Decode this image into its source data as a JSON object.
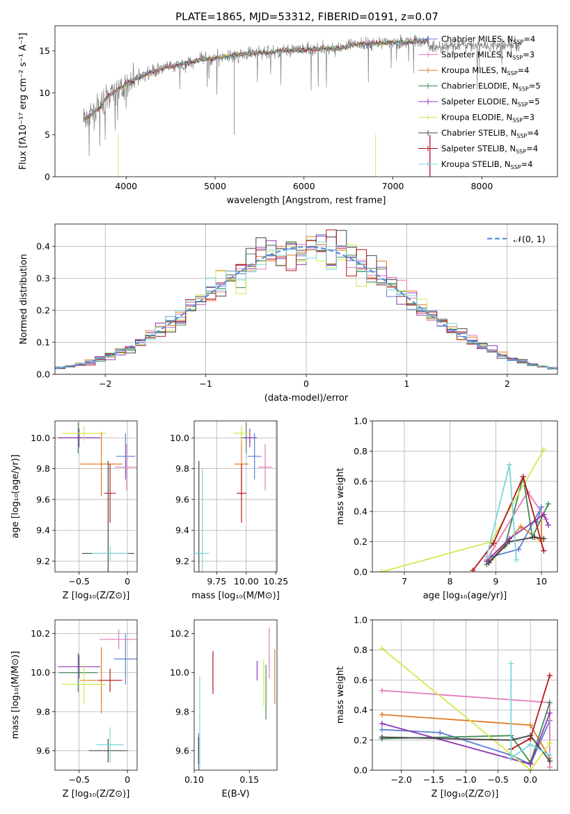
{
  "figure_title": "PLATE=1865, MJD=53312, FIBERID=0191, z=0.07",
  "models": [
    {
      "name": "Chabrier MILES",
      "nssp": "4",
      "color": "#5b7fd1"
    },
    {
      "name": "Salpeter MILES",
      "nssp": "3",
      "color": "#e37ab9"
    },
    {
      "name": "Kroupa MILES",
      "nssp": "4",
      "color": "#e07b27"
    },
    {
      "name": "Chabrier ELODIE",
      "nssp": "5",
      "color": "#3f8a55"
    },
    {
      "name": "Salpeter ELODIE",
      "nssp": "5",
      "color": "#8e34b3"
    },
    {
      "name": "Kroupa ELODIE",
      "nssp": "3",
      "color": "#d2e84e"
    },
    {
      "name": "Chabrier STELIB",
      "nssp": "4",
      "color": "#444444"
    },
    {
      "name": "Salpeter STELIB",
      "nssp": "4",
      "color": "#b2191d"
    },
    {
      "name": "Kroupa STELIB",
      "nssp": "4",
      "color": "#79d6d8"
    }
  ],
  "chart_data": [
    {
      "id": "spectrum",
      "type": "line",
      "xlabel": "wavelength [Angstrom, rest frame]",
      "ylabel": "Flux [fλ10⁻¹⁷ erg cm⁻² s⁻¹ A⁻¹]",
      "xlim": [
        3200,
        8850
      ],
      "ylim": [
        0,
        18
      ],
      "xticks": [
        4000,
        5000,
        6000,
        7000,
        8000
      ],
      "yticks": [
        0,
        5,
        10,
        15
      ],
      "grid": false,
      "legend_position": "right",
      "data_color": "#7f7f7f",
      "continuum": {
        "x": [
          3520,
          3600,
          3700,
          3800,
          3900,
          4000,
          4200,
          4400,
          4600,
          4800,
          5000,
          5200,
          5400,
          5600,
          5800,
          6000,
          6200,
          6400,
          6600,
          6800,
          7000,
          7200,
          7400
        ],
        "y": [
          6.8,
          7.3,
          8.3,
          9.6,
          10.3,
          11.1,
          12.1,
          12.9,
          13.3,
          13.9,
          14.1,
          14.5,
          14.7,
          14.8,
          15.1,
          15.1,
          15.3,
          15.3,
          15.8,
          15.9,
          16.0,
          16.1,
          16.2
        ]
      },
      "data_range": [
        3520,
        8450
      ],
      "model_range": [
        3520,
        7400
      ]
    },
    {
      "id": "residuals",
      "type": "step",
      "xlabel": "(data-model)/error",
      "ylabel": "Normed distribution",
      "xlim": [
        -2.5,
        2.5
      ],
      "ylim": [
        0,
        0.47
      ],
      "xticks": [
        -2,
        -1,
        0,
        1,
        2
      ],
      "yticks": [
        0.0,
        0.1,
        0.2,
        0.3,
        0.4
      ],
      "grid": true,
      "legend_position": "top-right",
      "reference_label": "𝒩(0, 1)",
      "reference_color": "#5b8fd6",
      "bin_width": 0.1
    },
    {
      "id": "age_vs_Z",
      "type": "errorbar",
      "xlabel": "Z [log₁₀(Z/Z⊙)]",
      "ylabel": "age  [log₁₀(age/yr)]",
      "xlim": [
        -0.75,
        0.1
      ],
      "ylim": [
        9.13,
        10.11
      ],
      "xticks": [
        -0.5,
        0.0
      ],
      "yticks": [
        9.2,
        9.4,
        9.6,
        9.8,
        10.0
      ],
      "grid": true,
      "points": [
        {
          "x": -0.02,
          "y": 9.88,
          "xerr": 0.1,
          "yerr": 0.15
        },
        {
          "x": -0.01,
          "y": 9.81,
          "xerr": 0.12,
          "yerr": 0.15
        },
        {
          "x": -0.27,
          "y": 9.83,
          "xerr": 0.22,
          "yerr": 0.21
        },
        {
          "x": -0.51,
          "y": 10.0,
          "xerr": 0.2,
          "yerr": 0.1
        },
        {
          "x": -0.5,
          "y": 10.0,
          "xerr": 0.22,
          "yerr": 0.06
        },
        {
          "x": -0.45,
          "y": 10.03,
          "xerr": 0.23,
          "yerr": 0.05
        },
        {
          "x": -0.2,
          "y": 9.25,
          "xerr": 0.27,
          "yerr": 0.6
        },
        {
          "x": -0.18,
          "y": 9.64,
          "xerr": 0.06,
          "yerr": 0.19
        },
        {
          "x": -0.18,
          "y": 9.25,
          "xerr": 0.19,
          "yerr": 0.05
        }
      ]
    },
    {
      "id": "age_vs_mass",
      "type": "errorbar",
      "xlabel": "mass [log₁₀(M/M⊙)]",
      "ylabel": "",
      "xlim": [
        9.56,
        10.26
      ],
      "ylim": [
        9.13,
        10.11
      ],
      "xticks": [
        9.75,
        10.0,
        10.25
      ],
      "xticklabels": [
        "9.75",
        "10.00",
        "10.25"
      ],
      "yticks": [
        9.2,
        9.4,
        9.6,
        9.8,
        10.0
      ],
      "grid": true,
      "points": [
        {
          "x": 10.07,
          "y": 9.88,
          "xerr": 0.06,
          "yerr": 0.15
        },
        {
          "x": 10.16,
          "y": 9.81,
          "xerr": 0.06,
          "yerr": 0.15
        },
        {
          "x": 9.96,
          "y": 9.83,
          "xerr": 0.06,
          "yerr": 0.21
        },
        {
          "x": 10.0,
          "y": 10.0,
          "xerr": 0.05,
          "yerr": 0.1
        },
        {
          "x": 10.03,
          "y": 10.0,
          "xerr": 0.06,
          "yerr": 0.06
        },
        {
          "x": 9.96,
          "y": 10.03,
          "xerr": 0.07,
          "yerr": 0.05
        },
        {
          "x": 9.6,
          "y": 9.25,
          "xerr": 0.03,
          "yerr": 0.6
        },
        {
          "x": 9.96,
          "y": 9.64,
          "xerr": 0.04,
          "yerr": 0.19
        },
        {
          "x": 9.63,
          "y": 9.25,
          "xerr": 0.06,
          "yerr": 0.55
        }
      ]
    },
    {
      "id": "weight_vs_age",
      "type": "line",
      "xlabel": "age  [log₁₀(age/yr)]",
      "ylabel": "mass weight",
      "xlim": [
        6.3,
        10.35
      ],
      "ylim": [
        0,
        1.0
      ],
      "xticks": [
        7,
        8,
        9,
        10
      ],
      "yticks": [
        0.0,
        0.2,
        0.4,
        0.6,
        0.8,
        1.0
      ],
      "grid": true,
      "series": [
        {
          "x": [
            8.9,
            9.5,
            10.0,
            9.9
          ],
          "y": [
            0.1,
            0.15,
            0.43,
            0.33
          ]
        },
        {
          "x": [
            8.8,
            9.7,
            10.1
          ],
          "y": [
            0.08,
            0.53,
            0.35
          ]
        },
        {
          "x": [
            8.9,
            9.55,
            10.0,
            10.0
          ],
          "y": [
            0.08,
            0.3,
            0.2,
            0.37
          ]
        },
        {
          "x": [
            8.8,
            9.2,
            9.6,
            9.8,
            10.15
          ],
          "y": [
            0.05,
            0.17,
            0.63,
            0.23,
            0.45
          ]
        },
        {
          "x": [
            8.8,
            9.3,
            10.05,
            10.15
          ],
          "y": [
            0.07,
            0.22,
            0.38,
            0.31
          ]
        },
        {
          "x": [
            6.5,
            8.9,
            10.05
          ],
          "y": [
            0.0,
            0.2,
            0.81
          ]
        },
        {
          "x": [
            8.85,
            9.3,
            9.85,
            10.05
          ],
          "y": [
            0.06,
            0.2,
            0.23,
            0.22
          ]
        },
        {
          "x": [
            8.5,
            8.95,
            9.6,
            10.05
          ],
          "y": [
            0.01,
            0.19,
            0.63,
            0.14
          ]
        },
        {
          "x": [
            8.8,
            9.3,
            9.45
          ],
          "y": [
            0.1,
            0.71,
            0.08
          ]
        }
      ]
    },
    {
      "id": "mass_vs_Z",
      "type": "errorbar",
      "xlabel": "Z [log₁₀(Z/Z⊙)]",
      "ylabel": "mass [log₁₀(M/M⊙)]",
      "xlim": [
        -0.75,
        0.1
      ],
      "ylim": [
        9.5,
        10.27
      ],
      "xticks": [
        -0.5,
        0.0
      ],
      "yticks": [
        9.6,
        9.8,
        10.0,
        10.2
      ],
      "grid": true,
      "points": [
        {
          "x": -0.02,
          "y": 10.07,
          "xerr": 0.12,
          "yerr": 0.13
        },
        {
          "x": -0.09,
          "y": 10.17,
          "xerr": 0.2,
          "yerr": 0.05
        },
        {
          "x": -0.27,
          "y": 9.96,
          "xerr": 0.22,
          "yerr": 0.17
        },
        {
          "x": -0.51,
          "y": 10.0,
          "xerr": 0.2,
          "yerr": 0.1
        },
        {
          "x": -0.5,
          "y": 10.03,
          "xerr": 0.22,
          "yerr": 0.06
        },
        {
          "x": -0.45,
          "y": 9.94,
          "xerr": 0.23,
          "yerr": 0.1
        },
        {
          "x": -0.2,
          "y": 9.6,
          "xerr": 0.2,
          "yerr": 0.06
        },
        {
          "x": -0.18,
          "y": 9.96,
          "xerr": 0.12,
          "yerr": 0.06
        },
        {
          "x": -0.18,
          "y": 9.63,
          "xerr": 0.14,
          "yerr": 0.09
        }
      ]
    },
    {
      "id": "mass_vs_ebv",
      "type": "errorbar",
      "xlabel": "E(B-V)",
      "ylabel": "",
      "xlim": [
        0.1,
        0.175
      ],
      "ylim": [
        9.5,
        10.27
      ],
      "xticks": [
        0.1,
        0.15
      ],
      "xticklabels": [
        "0.10",
        "0.15"
      ],
      "yticks": [
        9.6,
        9.8,
        10.0,
        10.2
      ],
      "grid": false,
      "points": [
        {
          "x": 0.104,
          "y": 9.58,
          "xerr": 0,
          "yerr": 0.11
        },
        {
          "x": 0.168,
          "y": 10.1,
          "xerr": 0,
          "yerr": 0.13
        },
        {
          "x": 0.173,
          "y": 9.98,
          "xerr": 0,
          "yerr": 0.14
        },
        {
          "x": 0.165,
          "y": 9.9,
          "xerr": 0,
          "yerr": 0.14
        },
        {
          "x": 0.157,
          "y": 10.01,
          "xerr": 0,
          "yerr": 0.05
        },
        {
          "x": 0.163,
          "y": 9.95,
          "xerr": 0,
          "yerr": 0.12
        },
        {
          "x": 0.104,
          "y": 9.6,
          "xerr": 0,
          "yerr": 0.07
        },
        {
          "x": 0.117,
          "y": 10.0,
          "xerr": 0,
          "yerr": 0.11
        },
        {
          "x": 0.105,
          "y": 9.7,
          "xerr": 0,
          "yerr": 0.28
        }
      ]
    },
    {
      "id": "weight_vs_Z",
      "type": "line",
      "xlabel": "Z [log₁₀(Z/Z⊙)]",
      "ylabel": "mass weight",
      "xlim": [
        -2.45,
        0.42
      ],
      "ylim": [
        0,
        1.0
      ],
      "xticks": [
        -2.0,
        -1.5,
        -1.0,
        -0.5,
        0.0
      ],
      "xticklabels": [
        "−2.0",
        "−1.5",
        "−1.0",
        "−0.5",
        "0.0"
      ],
      "yticks": [
        0.0,
        0.2,
        0.4,
        0.6,
        0.8,
        1.0
      ],
      "grid": true,
      "series": [
        {
          "x": [
            -2.3,
            -1.4,
            -0.3,
            0.0,
            0.3
          ],
          "y": [
            0.27,
            0.25,
            0.1,
            0.04,
            0.33
          ]
        },
        {
          "x": [
            -2.3,
            0.3,
            0.3
          ],
          "y": [
            0.53,
            0.45,
            0.02
          ]
        },
        {
          "x": [
            -2.3,
            0.0,
            0.3
          ],
          "y": [
            0.37,
            0.3,
            0.08
          ]
        },
        {
          "x": [
            -2.3,
            -0.3,
            0.0,
            0.3
          ],
          "y": [
            0.21,
            0.23,
            0.05,
            0.45
          ]
        },
        {
          "x": [
            -2.3,
            0.0,
            0.3
          ],
          "y": [
            0.31,
            0.04,
            0.38
          ]
        },
        {
          "x": [
            -2.3,
            0.0,
            0.3
          ],
          "y": [
            0.81,
            0.0,
            0.18
          ]
        },
        {
          "x": [
            -2.3,
            -0.3,
            0.0,
            0.3
          ],
          "y": [
            0.22,
            0.2,
            0.23,
            0.06
          ]
        },
        {
          "x": [
            -0.3,
            0.0,
            0.3
          ],
          "y": [
            0.14,
            0.21,
            0.63
          ]
        },
        {
          "x": [
            -0.3,
            -0.3,
            0.0,
            0.3
          ],
          "y": [
            0.71,
            0.08,
            0.17,
            0.1
          ]
        }
      ]
    }
  ]
}
